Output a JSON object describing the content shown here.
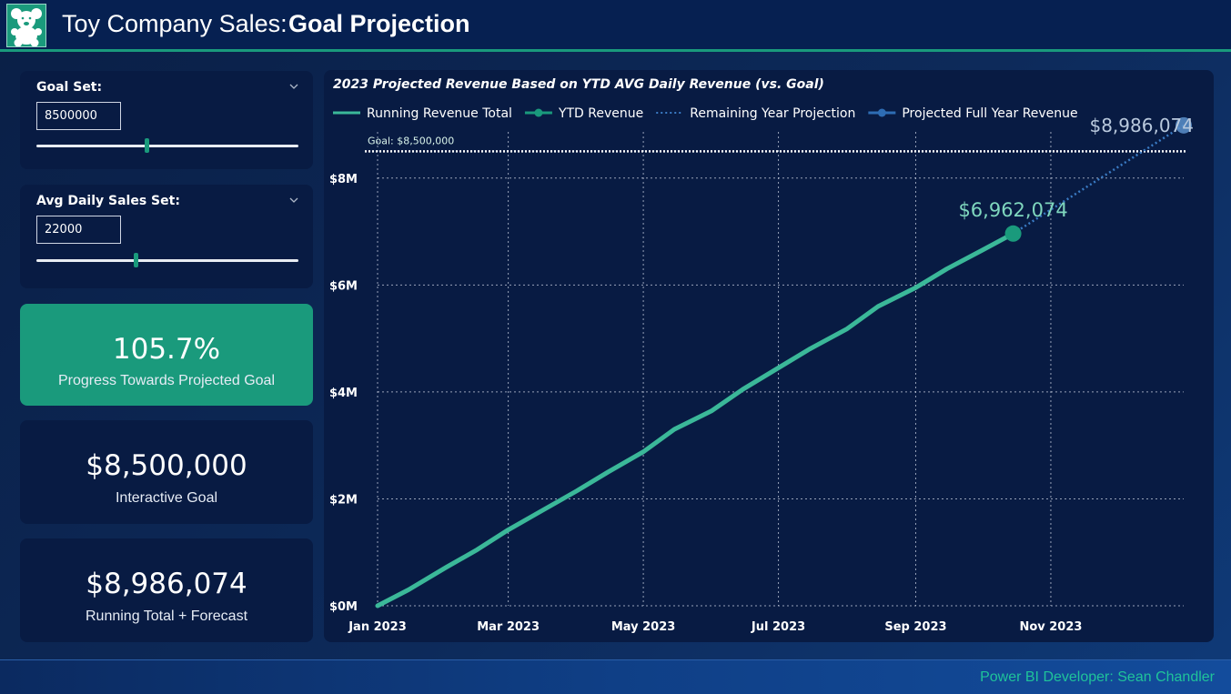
{
  "header": {
    "title_light": "Toy Company Sales:",
    "title_bold": "Goal Projection",
    "logo_icon": "teddy-bear-icon"
  },
  "slicers": [
    {
      "title": "Goal Set:",
      "value": "8500000",
      "slider_position": 0.42
    },
    {
      "title": "Avg Daily Sales Set:",
      "value": "22000",
      "slider_position": 0.38
    }
  ],
  "cards": {
    "progress": {
      "value": "105.7%",
      "label": "Progress Towards Projected Goal"
    },
    "goal": {
      "value": "$8,500,000",
      "label": "Interactive Goal"
    },
    "forecast": {
      "value": "$8,986,074",
      "label": "Running Total + Forecast"
    }
  },
  "footer": {
    "credit": "Power BI Developer: Sean Chandler"
  },
  "colors": {
    "accent": "#1a9a7c",
    "line": "#3bb899",
    "projection": "#2e6db4",
    "background": "#081b43"
  },
  "chart_data": {
    "type": "line",
    "title": "2023 Projected Revenue Based on YTD AVG Daily Revenue (vs. Goal)",
    "legend": [
      "Running Revenue Total",
      "YTD Revenue",
      "Remaining Year Projection",
      "Projected Full Year Revenue"
    ],
    "legend_position": "top-left",
    "x_ticks": [
      "Jan 2023",
      "Mar 2023",
      "May 2023",
      "Jul 2023",
      "Sep 2023",
      "Nov 2023"
    ],
    "y_ticks": [
      "$0M",
      "$2M",
      "$4M",
      "$6M",
      "$8M"
    ],
    "ylim": [
      0,
      9000000
    ],
    "xlim": [
      "2023-01-01",
      "2023-12-31"
    ],
    "grid": true,
    "goal": {
      "value": 8500000,
      "label": "Goal: $8,500,000"
    },
    "series": [
      {
        "name": "Running Revenue Total",
        "x": [
          "2023-01-01",
          "2023-01-15",
          "2023-02-01",
          "2023-02-15",
          "2023-03-01",
          "2023-03-15",
          "2023-04-01",
          "2023-04-15",
          "2023-05-01",
          "2023-05-15",
          "2023-06-01",
          "2023-06-15",
          "2023-07-01",
          "2023-07-15",
          "2023-08-01",
          "2023-08-15",
          "2023-09-01",
          "2023-09-15",
          "2023-10-01",
          "2023-10-15"
        ],
        "values": [
          0,
          300000,
          720000,
          1050000,
          1420000,
          1750000,
          2150000,
          2500000,
          2880000,
          3300000,
          3650000,
          4050000,
          4450000,
          4800000,
          5180000,
          5600000,
          5950000,
          6300000,
          6650000,
          6962074
        ]
      },
      {
        "name": "YTD Revenue",
        "x": [
          "2023-10-15"
        ],
        "values": [
          6962074
        ],
        "label": "$6,962,074"
      },
      {
        "name": "Remaining Year Projection",
        "x": [
          "2023-10-15",
          "2023-12-31"
        ],
        "values": [
          6962074,
          8986074
        ]
      },
      {
        "name": "Projected Full Year Revenue",
        "x": [
          "2023-12-31"
        ],
        "values": [
          8986074
        ],
        "label": "$8,986,074"
      }
    ]
  }
}
